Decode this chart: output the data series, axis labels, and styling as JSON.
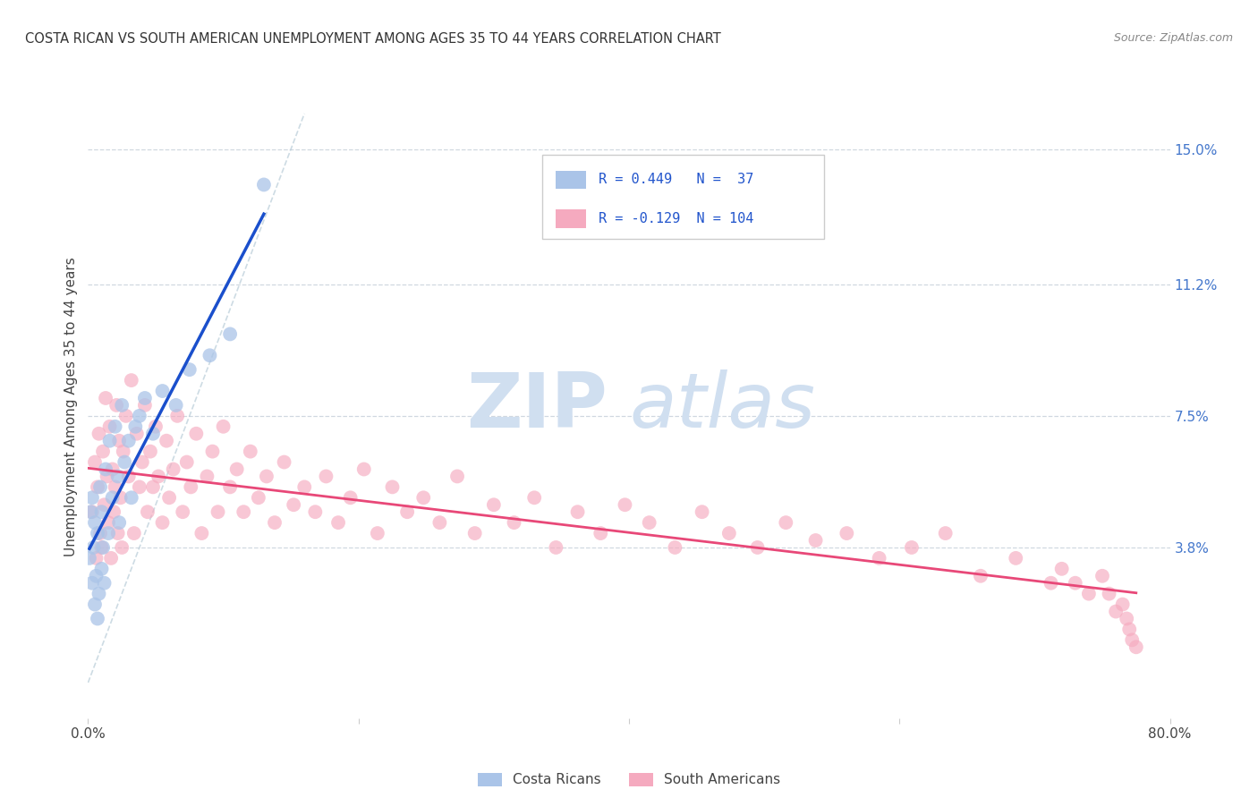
{
  "title": "COSTA RICAN VS SOUTH AMERICAN UNEMPLOYMENT AMONG AGES 35 TO 44 YEARS CORRELATION CHART",
  "source": "Source: ZipAtlas.com",
  "ylabel": "Unemployment Among Ages 35 to 44 years",
  "xlim": [
    0.0,
    0.8
  ],
  "ylim": [
    -0.01,
    0.165
  ],
  "right_yticks": [
    0.038,
    0.075,
    0.112,
    0.15
  ],
  "right_yticklabels": [
    "3.8%",
    "7.5%",
    "11.2%",
    "15.0%"
  ],
  "grid_color": "#d0d8e0",
  "background_color": "#ffffff",
  "costa_rican_color": "#aac4e8",
  "south_american_color": "#f5aabf",
  "costa_rican_line_color": "#1a4fcc",
  "south_american_line_color": "#e84878",
  "diag_line_color": "#b8ccd8",
  "costa_rican_R": 0.449,
  "costa_rican_N": 37,
  "south_american_R": -0.129,
  "south_american_N": 104,
  "watermark_zip": "ZIP",
  "watermark_atlas": "atlas",
  "watermark_color": "#d0dff0",
  "cr_x": [
    0.001,
    0.002,
    0.003,
    0.003,
    0.004,
    0.005,
    0.005,
    0.006,
    0.007,
    0.007,
    0.008,
    0.009,
    0.01,
    0.01,
    0.011,
    0.012,
    0.013,
    0.015,
    0.016,
    0.018,
    0.02,
    0.022,
    0.023,
    0.025,
    0.027,
    0.03,
    0.032,
    0.035,
    0.038,
    0.042,
    0.048,
    0.055,
    0.065,
    0.075,
    0.09,
    0.105,
    0.13
  ],
  "cr_y": [
    0.035,
    0.048,
    0.028,
    0.052,
    0.038,
    0.022,
    0.045,
    0.03,
    0.018,
    0.042,
    0.025,
    0.055,
    0.032,
    0.048,
    0.038,
    0.028,
    0.06,
    0.042,
    0.068,
    0.052,
    0.072,
    0.058,
    0.045,
    0.078,
    0.062,
    0.068,
    0.052,
    0.072,
    0.075,
    0.08,
    0.07,
    0.082,
    0.078,
    0.088,
    0.092,
    0.098,
    0.14
  ],
  "sa_x": [
    0.003,
    0.005,
    0.006,
    0.007,
    0.008,
    0.009,
    0.01,
    0.011,
    0.012,
    0.013,
    0.014,
    0.015,
    0.016,
    0.017,
    0.018,
    0.019,
    0.02,
    0.021,
    0.022,
    0.023,
    0.024,
    0.025,
    0.026,
    0.028,
    0.03,
    0.032,
    0.034,
    0.036,
    0.038,
    0.04,
    0.042,
    0.044,
    0.046,
    0.048,
    0.05,
    0.052,
    0.055,
    0.058,
    0.06,
    0.063,
    0.066,
    0.07,
    0.073,
    0.076,
    0.08,
    0.084,
    0.088,
    0.092,
    0.096,
    0.1,
    0.105,
    0.11,
    0.115,
    0.12,
    0.126,
    0.132,
    0.138,
    0.145,
    0.152,
    0.16,
    0.168,
    0.176,
    0.185,
    0.194,
    0.204,
    0.214,
    0.225,
    0.236,
    0.248,
    0.26,
    0.273,
    0.286,
    0.3,
    0.315,
    0.33,
    0.346,
    0.362,
    0.379,
    0.397,
    0.415,
    0.434,
    0.454,
    0.474,
    0.495,
    0.516,
    0.538,
    0.561,
    0.585,
    0.609,
    0.634,
    0.66,
    0.686,
    0.712,
    0.72,
    0.73,
    0.74,
    0.75,
    0.755,
    0.76,
    0.765,
    0.768,
    0.77,
    0.772,
    0.775
  ],
  "sa_y": [
    0.048,
    0.062,
    0.035,
    0.055,
    0.07,
    0.042,
    0.038,
    0.065,
    0.05,
    0.08,
    0.058,
    0.045,
    0.072,
    0.035,
    0.06,
    0.048,
    0.055,
    0.078,
    0.042,
    0.068,
    0.052,
    0.038,
    0.065,
    0.075,
    0.058,
    0.085,
    0.042,
    0.07,
    0.055,
    0.062,
    0.078,
    0.048,
    0.065,
    0.055,
    0.072,
    0.058,
    0.045,
    0.068,
    0.052,
    0.06,
    0.075,
    0.048,
    0.062,
    0.055,
    0.07,
    0.042,
    0.058,
    0.065,
    0.048,
    0.072,
    0.055,
    0.06,
    0.048,
    0.065,
    0.052,
    0.058,
    0.045,
    0.062,
    0.05,
    0.055,
    0.048,
    0.058,
    0.045,
    0.052,
    0.06,
    0.042,
    0.055,
    0.048,
    0.052,
    0.045,
    0.058,
    0.042,
    0.05,
    0.045,
    0.052,
    0.038,
    0.048,
    0.042,
    0.05,
    0.045,
    0.038,
    0.048,
    0.042,
    0.038,
    0.045,
    0.04,
    0.042,
    0.035,
    0.038,
    0.042,
    0.03,
    0.035,
    0.028,
    0.032,
    0.028,
    0.025,
    0.03,
    0.025,
    0.02,
    0.022,
    0.018,
    0.015,
    0.012,
    0.01
  ]
}
